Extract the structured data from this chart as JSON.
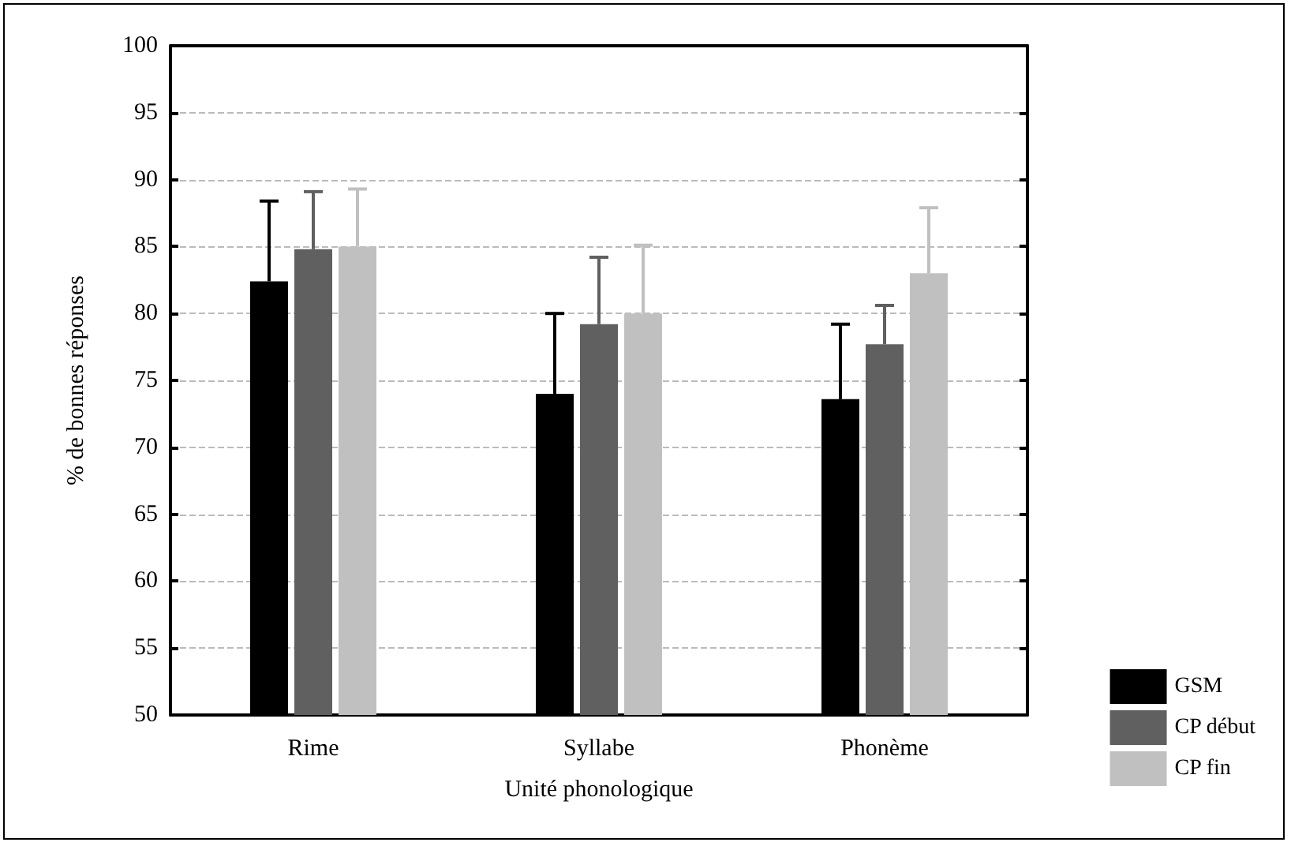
{
  "chart_data": {
    "type": "bar",
    "xlabel": "Unité phonologique",
    "ylabel": "% de bonnes réponses",
    "categories": [
      "Rime",
      "Syllabe",
      "Phonème"
    ],
    "series": [
      {
        "name": "GSM",
        "color": "#000000",
        "values": [
          82.4,
          74.0,
          73.6
        ],
        "errors": [
          [
            82.4,
            88.4
          ],
          [
            74.0,
            80.0
          ],
          [
            73.6,
            79.2
          ]
        ]
      },
      {
        "name": "CP début",
        "color": "#606060",
        "values": [
          84.8,
          79.2,
          77.7
        ],
        "errors": [
          [
            84.8,
            89.1
          ],
          [
            79.2,
            84.2
          ],
          [
            77.7,
            80.6
          ]
        ]
      },
      {
        "name": "CP fin",
        "color": "#c0c0c0",
        "values": [
          85.0,
          80.0,
          83.0
        ],
        "errors": [
          [
            85.0,
            89.3
          ],
          [
            80.0,
            85.1
          ],
          [
            83.0,
            87.9
          ]
        ]
      }
    ],
    "ylim": [
      50,
      100
    ],
    "yticks": [
      50,
      55,
      60,
      65,
      70,
      75,
      80,
      85,
      90,
      95,
      100
    ],
    "grid": "y",
    "legend": "bottom right"
  }
}
